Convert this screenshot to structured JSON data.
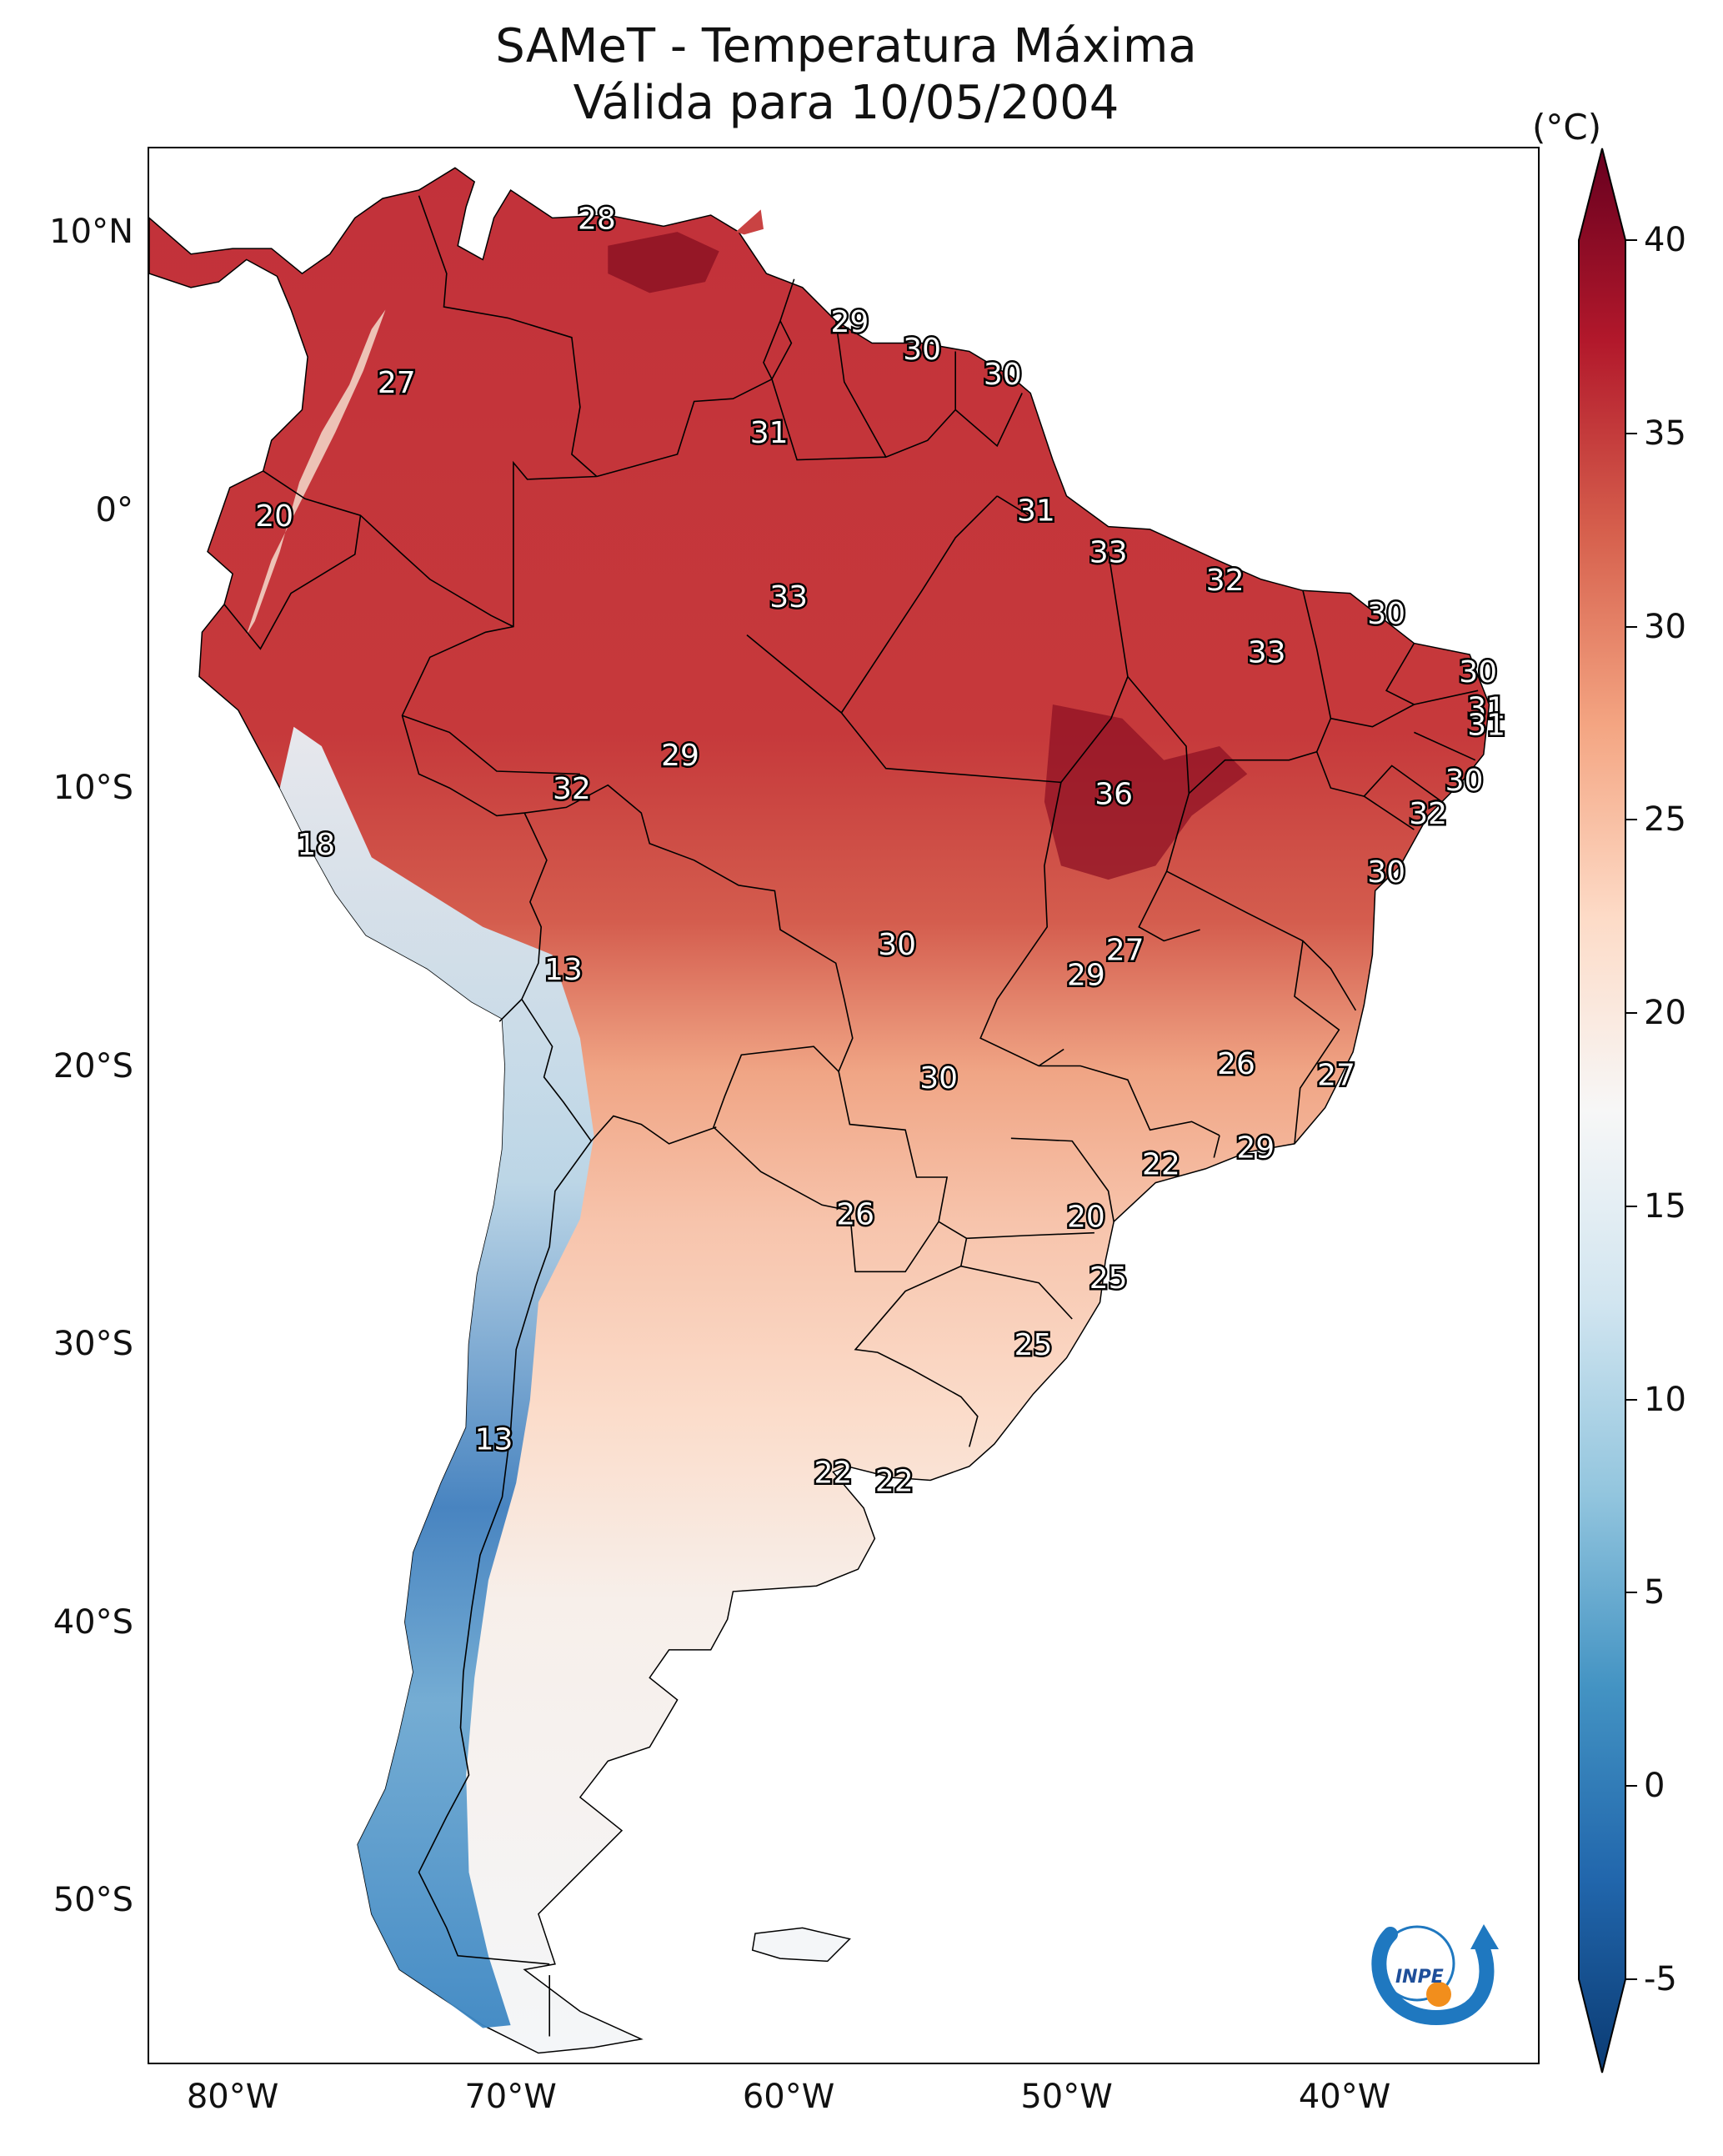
{
  "title": {
    "line1": "SAMeT - Temperatura Máxima",
    "line2": "Válida para 10/05/2004"
  },
  "map": {
    "lon_range": [
      -83,
      -33
    ],
    "lat_range": [
      -56,
      13
    ],
    "latitude_labels": [
      {
        "lat": 10,
        "text": "10°N"
      },
      {
        "lat": 0,
        "text": "0°"
      },
      {
        "lat": -10,
        "text": "10°S"
      },
      {
        "lat": -20,
        "text": "20°S"
      },
      {
        "lat": -30,
        "text": "30°S"
      },
      {
        "lat": -40,
        "text": "40°S"
      },
      {
        "lat": -50,
        "text": "50°S"
      }
    ],
    "longitude_labels": [
      {
        "lon": -80,
        "text": "80°W"
      },
      {
        "lon": -70,
        "text": "70°W"
      },
      {
        "lon": -60,
        "text": "60°W"
      },
      {
        "lon": -50,
        "text": "50°W"
      },
      {
        "lon": -40,
        "text": "40°W"
      }
    ],
    "point_values": [
      {
        "text": "28",
        "lon": -66.9,
        "lat": 10.5
      },
      {
        "text": "27",
        "lon": -74.1,
        "lat": 4.6
      },
      {
        "text": "29",
        "lon": -57.8,
        "lat": 6.8
      },
      {
        "text": "30",
        "lon": -55.2,
        "lat": 5.8
      },
      {
        "text": "30",
        "lon": -52.3,
        "lat": 4.9
      },
      {
        "text": "31",
        "lon": -60.7,
        "lat": 2.8
      },
      {
        "text": "20",
        "lon": -78.5,
        "lat": -0.2
      },
      {
        "text": "31",
        "lon": -51.1,
        "lat": 0.0
      },
      {
        "text": "33",
        "lon": -48.5,
        "lat": -1.5
      },
      {
        "text": "32",
        "lon": -44.3,
        "lat": -2.5
      },
      {
        "text": "33",
        "lon": -60.0,
        "lat": -3.1
      },
      {
        "text": "30",
        "lon": -38.5,
        "lat": -3.7
      },
      {
        "text": "33",
        "lon": -42.8,
        "lat": -5.1
      },
      {
        "text": "30",
        "lon": -35.2,
        "lat": -5.8
      },
      {
        "text": "31",
        "lon": -34.9,
        "lat": -7.1
      },
      {
        "text": "31",
        "lon": -34.9,
        "lat": -7.7
      },
      {
        "text": "29",
        "lon": -63.9,
        "lat": -8.8
      },
      {
        "text": "32",
        "lon": -67.8,
        "lat": -10.0
      },
      {
        "text": "30",
        "lon": -35.7,
        "lat": -9.7
      },
      {
        "text": "36",
        "lon": -48.3,
        "lat": -10.2
      },
      {
        "text": "32",
        "lon": -37.0,
        "lat": -10.9
      },
      {
        "text": "18",
        "lon": -77.0,
        "lat": -12.0
      },
      {
        "text": "30",
        "lon": -38.5,
        "lat": -13.0
      },
      {
        "text": "30",
        "lon": -56.1,
        "lat": -15.6
      },
      {
        "text": "27",
        "lon": -47.9,
        "lat": -15.8
      },
      {
        "text": "29",
        "lon": -49.3,
        "lat": -16.7
      },
      {
        "text": "13",
        "lon": -68.1,
        "lat": -16.5
      },
      {
        "text": "26",
        "lon": -43.9,
        "lat": -19.9
      },
      {
        "text": "27",
        "lon": -40.3,
        "lat": -20.3
      },
      {
        "text": "30",
        "lon": -54.6,
        "lat": -20.4
      },
      {
        "text": "22",
        "lon": -46.6,
        "lat": -23.5
      },
      {
        "text": "29",
        "lon": -43.2,
        "lat": -22.9
      },
      {
        "text": "26",
        "lon": -57.6,
        "lat": -25.3
      },
      {
        "text": "20",
        "lon": -49.3,
        "lat": -25.4
      },
      {
        "text": "25",
        "lon": -48.5,
        "lat": -27.6
      },
      {
        "text": "25",
        "lon": -51.2,
        "lat": -30.0
      },
      {
        "text": "13",
        "lon": -70.6,
        "lat": -33.4
      },
      {
        "text": "22",
        "lon": -58.4,
        "lat": -34.6
      },
      {
        "text": "22",
        "lon": -56.2,
        "lat": -34.9
      }
    ]
  },
  "colorbar": {
    "unit": "(°C)",
    "min": -5,
    "max": 40,
    "ticks": [
      -5,
      0,
      5,
      10,
      15,
      20,
      25,
      30,
      35,
      40
    ],
    "tick_labels": [
      "-5",
      "0",
      "5",
      "10",
      "15",
      "20",
      "25",
      "30",
      "35",
      "40"
    ],
    "colors": [
      "#0b3b73",
      "#2166ac",
      "#4393c3",
      "#92c5de",
      "#d1e5f0",
      "#f7f7f7",
      "#fddbc7",
      "#f4a582",
      "#d6604d",
      "#b2182b",
      "#67001f"
    ]
  },
  "logo": {
    "text": "INPE",
    "colors": {
      "arc": "#1f78c0",
      "dot": "#f28e1c"
    }
  }
}
